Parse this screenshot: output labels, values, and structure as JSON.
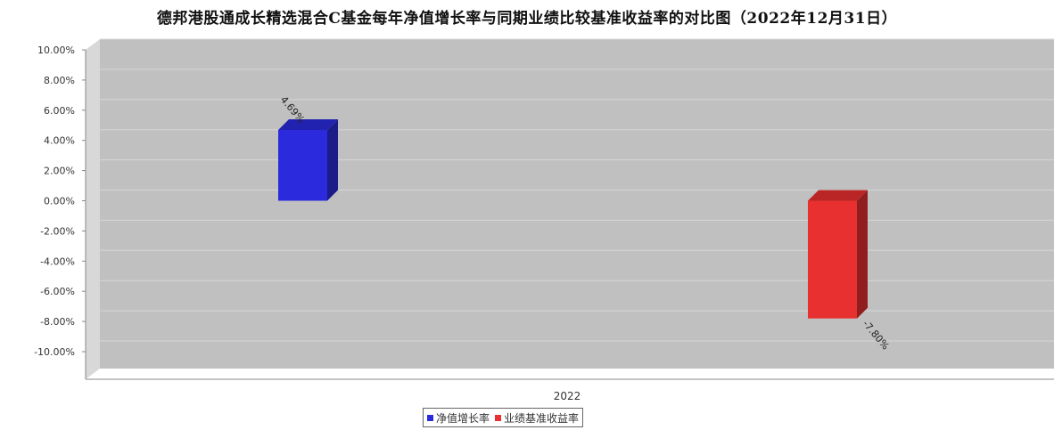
{
  "chart_data": {
    "type": "bar",
    "title": "德邦港股通成长精选混合C基金每年净值增长率与同期业绩比较基准收益率的对比图（2022年12月31日）",
    "categories": [
      "2022"
    ],
    "series": [
      {
        "name": "净值增长率",
        "values": [
          4.69
        ],
        "label": "4.69%",
        "color": "#2b2bdd"
      },
      {
        "name": "业绩基准收益率",
        "values": [
          -7.8
        ],
        "label": "-7.80%",
        "color": "#e83030"
      }
    ],
    "ylim": [
      -10,
      10
    ],
    "yticks": [
      "10.00%",
      "8.00%",
      "6.00%",
      "4.00%",
      "2.00%",
      "0.00%",
      "-2.00%",
      "-4.00%",
      "-6.00%",
      "-8.00%",
      "-10.00%"
    ],
    "grid": true,
    "legend_position": "bottom-center",
    "plot_background": "#c0c0c0"
  }
}
